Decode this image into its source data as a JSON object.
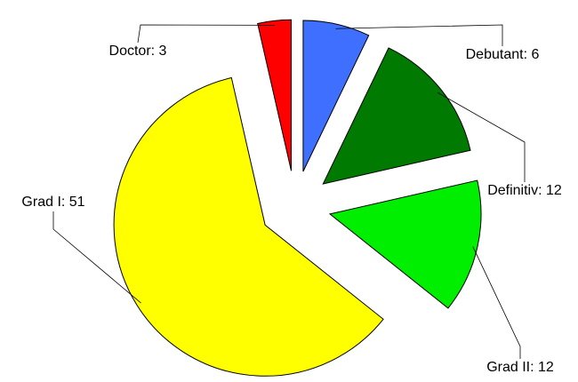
{
  "chart_data": {
    "type": "pie",
    "values": [
      6,
      12,
      12,
      51,
      3
    ],
    "value_labels": [
      "Debutant: 6",
      "Definitiv: 12",
      "Grad II: 12",
      "Grad I: 51",
      "Doctor: 3"
    ],
    "colors": [
      "#3f6fff",
      "#007a00",
      "#00ee00",
      "#ffff00",
      "#ff0000"
    ]
  }
}
